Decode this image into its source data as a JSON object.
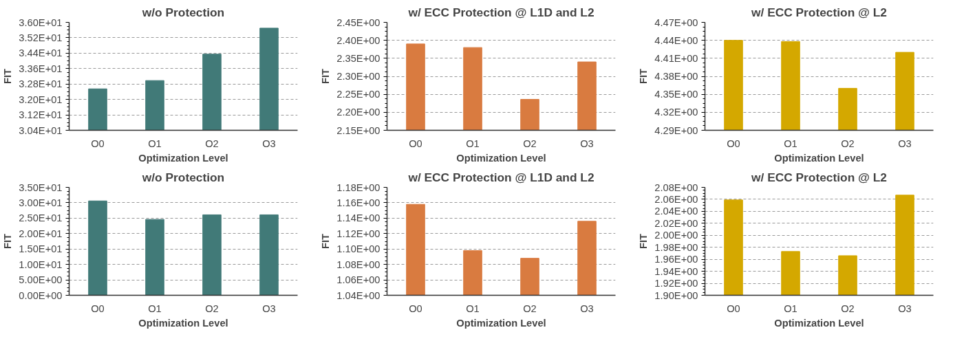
{
  "chart_data": [
    {
      "type": "bar",
      "title": "w/o Protection",
      "xlabel": "Optimization Level",
      "ylabel": "FIT",
      "categories": [
        "O0",
        "O1",
        "O2",
        "O3"
      ],
      "values": [
        32.55,
        32.98,
        34.35,
        35.7
      ],
      "color": "#417a78",
      "ylim": [
        30.4,
        36.0
      ],
      "yticks": [
        {
          "value": 30.4,
          "label": "3.04E+01"
        },
        {
          "value": 31.2,
          "label": "3.12E+01"
        },
        {
          "value": 32.0,
          "label": "3.20E+01"
        },
        {
          "value": 32.8,
          "label": "3.28E+01"
        },
        {
          "value": 33.6,
          "label": "3.36E+01"
        },
        {
          "value": 34.4,
          "label": "3.44E+01"
        },
        {
          "value": 35.2,
          "label": "3.52E+01"
        },
        {
          "value": 36.0,
          "label": "3.60E+01"
        }
      ],
      "grid": "y"
    },
    {
      "type": "bar",
      "title": "w/ ECC Protection @ L1D and L2",
      "xlabel": "Optimization Level",
      "ylabel": "FIT",
      "categories": [
        "O0",
        "O1",
        "O2",
        "O3"
      ],
      "values": [
        2.39,
        2.38,
        2.236,
        2.34
      ],
      "color": "#d97b40",
      "ylim": [
        2.15,
        2.45
      ],
      "yticks": [
        {
          "value": 2.15,
          "label": "2.15E+00"
        },
        {
          "value": 2.2,
          "label": "2.20E+00"
        },
        {
          "value": 2.25,
          "label": "2.25E+00"
        },
        {
          "value": 2.3,
          "label": "2.30E+00"
        },
        {
          "value": 2.35,
          "label": "2.35E+00"
        },
        {
          "value": 2.4,
          "label": "2.40E+00"
        },
        {
          "value": 2.45,
          "label": "2.45E+00"
        }
      ],
      "grid": "y"
    },
    {
      "type": "bar",
      "title": "w/ ECC Protection @ L2",
      "xlabel": "Optimization Level",
      "ylabel": "FIT",
      "categories": [
        "O0",
        "O1",
        "O2",
        "O3"
      ],
      "values": [
        4.44,
        4.438,
        4.36,
        4.42
      ],
      "color": "#d4a800",
      "ylim": [
        4.29,
        4.47
      ],
      "yticks": [
        {
          "value": 4.29,
          "label": "4.29E+00"
        },
        {
          "value": 4.32,
          "label": "4.32E+00"
        },
        {
          "value": 4.35,
          "label": "4.35E+00"
        },
        {
          "value": 4.38,
          "label": "4.38E+00"
        },
        {
          "value": 4.41,
          "label": "4.41E+00"
        },
        {
          "value": 4.44,
          "label": "4.44E+00"
        },
        {
          "value": 4.47,
          "label": "4.47E+00"
        }
      ],
      "grid": "y"
    },
    {
      "type": "bar",
      "title": "w/o Protection",
      "xlabel": "Optimization Level",
      "ylabel": "FIT",
      "categories": [
        "O0",
        "O1",
        "O2",
        "O3"
      ],
      "values": [
        30.6,
        24.6,
        26.1,
        26.1
      ],
      "color": "#417a78",
      "ylim": [
        0,
        35
      ],
      "yticks": [
        {
          "value": 0,
          "label": "0.00E+00"
        },
        {
          "value": 5,
          "label": "5.00E+00"
        },
        {
          "value": 10,
          "label": "1.00E+01"
        },
        {
          "value": 15,
          "label": "1.50E+01"
        },
        {
          "value": 20,
          "label": "2.00E+01"
        },
        {
          "value": 25,
          "label": "2.50E+01"
        },
        {
          "value": 30,
          "label": "3.00E+01"
        },
        {
          "value": 35,
          "label": "3.50E+01"
        }
      ],
      "grid": "y"
    },
    {
      "type": "bar",
      "title": "w/ ECC Protection @ L1D and L2",
      "xlabel": "Optimization Level",
      "ylabel": "FIT",
      "categories": [
        "O0",
        "O1",
        "O2",
        "O3"
      ],
      "values": [
        1.158,
        1.098,
        1.088,
        1.136
      ],
      "color": "#d97b40",
      "ylim": [
        1.04,
        1.18
      ],
      "yticks": [
        {
          "value": 1.04,
          "label": "1.04E+00"
        },
        {
          "value": 1.06,
          "label": "1.06E+00"
        },
        {
          "value": 1.08,
          "label": "1.08E+00"
        },
        {
          "value": 1.1,
          "label": "1.10E+00"
        },
        {
          "value": 1.12,
          "label": "1.12E+00"
        },
        {
          "value": 1.14,
          "label": "1.14E+00"
        },
        {
          "value": 1.16,
          "label": "1.16E+00"
        },
        {
          "value": 1.18,
          "label": "1.18E+00"
        }
      ],
      "grid": "y"
    },
    {
      "type": "bar",
      "title": "w/ ECC Protection @ L2",
      "xlabel": "Optimization Level",
      "ylabel": "FIT",
      "categories": [
        "O0",
        "O1",
        "O2",
        "O3"
      ],
      "values": [
        2.059,
        1.973,
        1.966,
        2.067
      ],
      "color": "#d4a800",
      "ylim": [
        1.9,
        2.08
      ],
      "yticks": [
        {
          "value": 1.9,
          "label": "1.90E+00"
        },
        {
          "value": 1.92,
          "label": "1.92E+00"
        },
        {
          "value": 1.94,
          "label": "1.94E+00"
        },
        {
          "value": 1.96,
          "label": "1.96E+00"
        },
        {
          "value": 1.98,
          "label": "1.98E+00"
        },
        {
          "value": 2.0,
          "label": "2.00E+00"
        },
        {
          "value": 2.02,
          "label": "2.02E+00"
        },
        {
          "value": 2.04,
          "label": "2.04E+00"
        },
        {
          "value": 2.06,
          "label": "2.06E+00"
        },
        {
          "value": 2.08,
          "label": "2.08E+00"
        }
      ],
      "grid": "y"
    }
  ]
}
